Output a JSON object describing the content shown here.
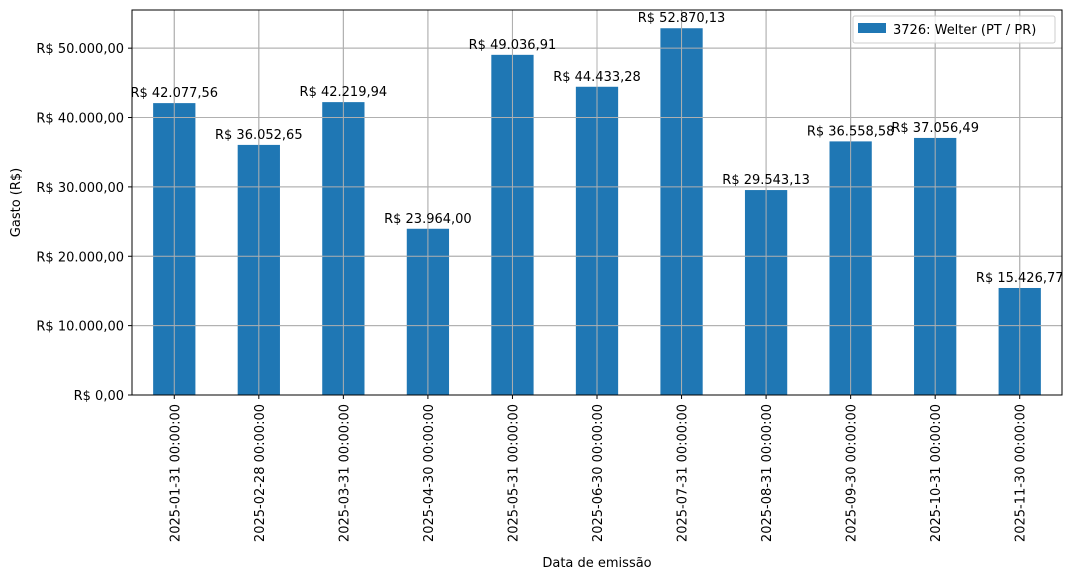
{
  "chart_data": {
    "type": "bar",
    "title": "",
    "xlabel": "Data de emissão",
    "ylabel": "Gasto (R$)",
    "ylim": [
      0,
      55500
    ],
    "grid": true,
    "legend_position": "upper right",
    "categories": [
      "2025-01-31 00:00:00",
      "2025-02-28 00:00:00",
      "2025-03-31 00:00:00",
      "2025-04-30 00:00:00",
      "2025-05-31 00:00:00",
      "2025-06-30 00:00:00",
      "2025-07-31 00:00:00",
      "2025-08-31 00:00:00",
      "2025-09-30 00:00:00",
      "2025-10-31 00:00:00",
      "2025-11-30 00:00:00"
    ],
    "series": [
      {
        "name": "3726: Welter (PT / PR)",
        "color": "#1f77b4",
        "values": [
          42077.56,
          36052.65,
          42219.94,
          23964.0,
          49036.91,
          44433.28,
          52870.13,
          29543.13,
          36558.58,
          37056.49,
          15426.77
        ],
        "labels": [
          "R$ 42.077,56",
          "R$ 36.052,65",
          "R$ 42.219,94",
          "R$ 23.964,00",
          "R$ 49.036,91",
          "R$ 44.433,28",
          "R$ 52.870,13",
          "R$ 29.543,13",
          "R$ 36.558,58",
          "R$ 37.056,49",
          "R$ 15.426,77"
        ]
      }
    ],
    "yticks": [
      0,
      10000,
      20000,
      30000,
      40000,
      50000
    ],
    "ytick_labels": [
      "R$ 0,00",
      "R$ 10.000,00",
      "R$ 20.000,00",
      "R$ 30.000,00",
      "R$ 40.000,00",
      "R$ 50.000,00"
    ]
  },
  "colors": {
    "bar": "#1f77b4",
    "grid": "#b0b0b0",
    "axis": "#000000"
  }
}
